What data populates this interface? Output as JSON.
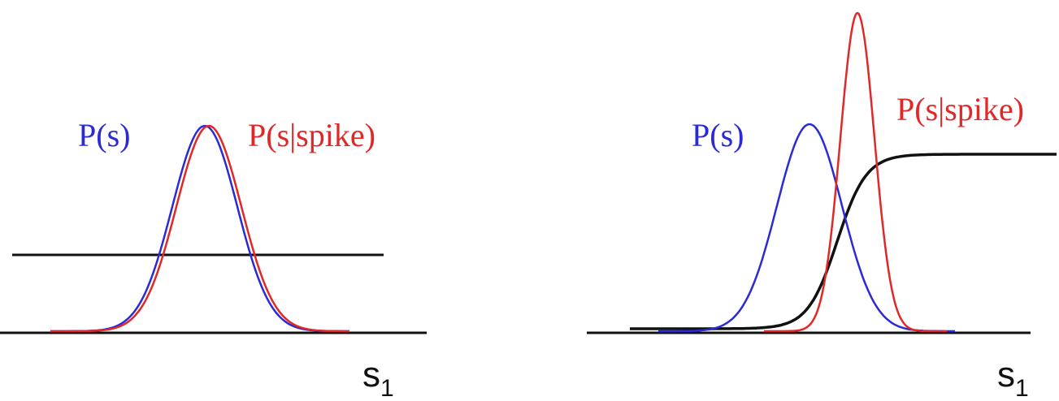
{
  "colors": {
    "prior": "#2b2bd6",
    "conditional": "#e02828",
    "nonlinearity": "#111111",
    "axis": "#111111"
  },
  "panels": [
    {
      "prior_label": "P(s)",
      "conditional_label": "P(s|spike)",
      "axis_label_main": "s",
      "axis_label_sub": "1",
      "description_curves": {
        "prior": {
          "mean": 0.0,
          "sd": 1.0,
          "peak": 1.0
        },
        "conditional": {
          "mean": 0.05,
          "sd": 1.0,
          "peak": 1.0
        },
        "nonlinearity": {
          "type": "flat",
          "level": 0.4
        }
      }
    },
    {
      "prior_label": "P(s)",
      "conditional_label": "P(s|spike)",
      "axis_label_main": "s",
      "axis_label_sub": "1",
      "description_curves": {
        "prior": {
          "mean": 0.0,
          "sd": 1.0,
          "peak": 1.0
        },
        "conditional": {
          "mean": 1.2,
          "sd": 0.5,
          "peak": 1.55
        },
        "nonlinearity": {
          "type": "sigmoid",
          "center": 0.95,
          "level": 0.87
        }
      }
    }
  ]
}
